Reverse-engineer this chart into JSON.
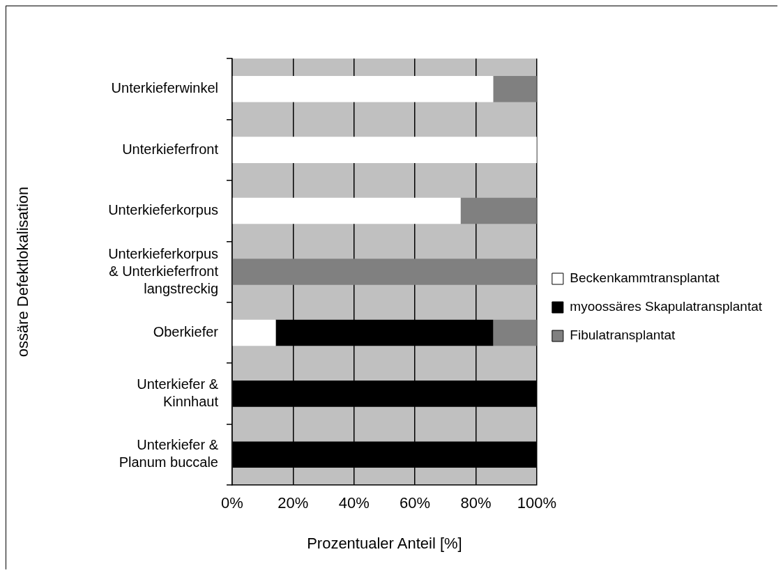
{
  "chart_data": {
    "type": "bar",
    "orientation": "horizontal",
    "stacked": true,
    "xlabel": "Prozentualer Anteil [%]",
    "ylabel": "ossäre Defektlokalisation",
    "categories": [
      "Unterkieferwinkel",
      "Unterkieferfront",
      "Unterkieferkorpus",
      "Unterkieferkorpus & Unterkieferfront langstreckig",
      "Oberkiefer",
      "Unterkiefer & Kinnhaut",
      "Unterkiefer & Planum buccale"
    ],
    "series": [
      {
        "name": "Beckenkammtransplantat",
        "color": "#ffffff",
        "values": [
          85.7,
          100,
          75,
          0,
          14.3,
          0,
          0
        ]
      },
      {
        "name": "myoossäres Skapulatransplantat",
        "color": "#000000",
        "values": [
          0,
          0,
          0,
          0,
          71.4,
          100,
          100
        ]
      },
      {
        "name": "Fibulatransplantat",
        "color": "#808080",
        "values": [
          14.3,
          0,
          25,
          100,
          14.3,
          0,
          0
        ]
      }
    ],
    "xlim": [
      0,
      100
    ],
    "xticks": [
      {
        "value": 0,
        "label": "0%"
      },
      {
        "value": 20,
        "label": "20%"
      },
      {
        "value": 40,
        "label": "40%"
      },
      {
        "value": 60,
        "label": "60%"
      },
      {
        "value": 80,
        "label": "80%"
      },
      {
        "value": 100,
        "label": "100%"
      }
    ],
    "grid": "x",
    "legend": "right"
  }
}
